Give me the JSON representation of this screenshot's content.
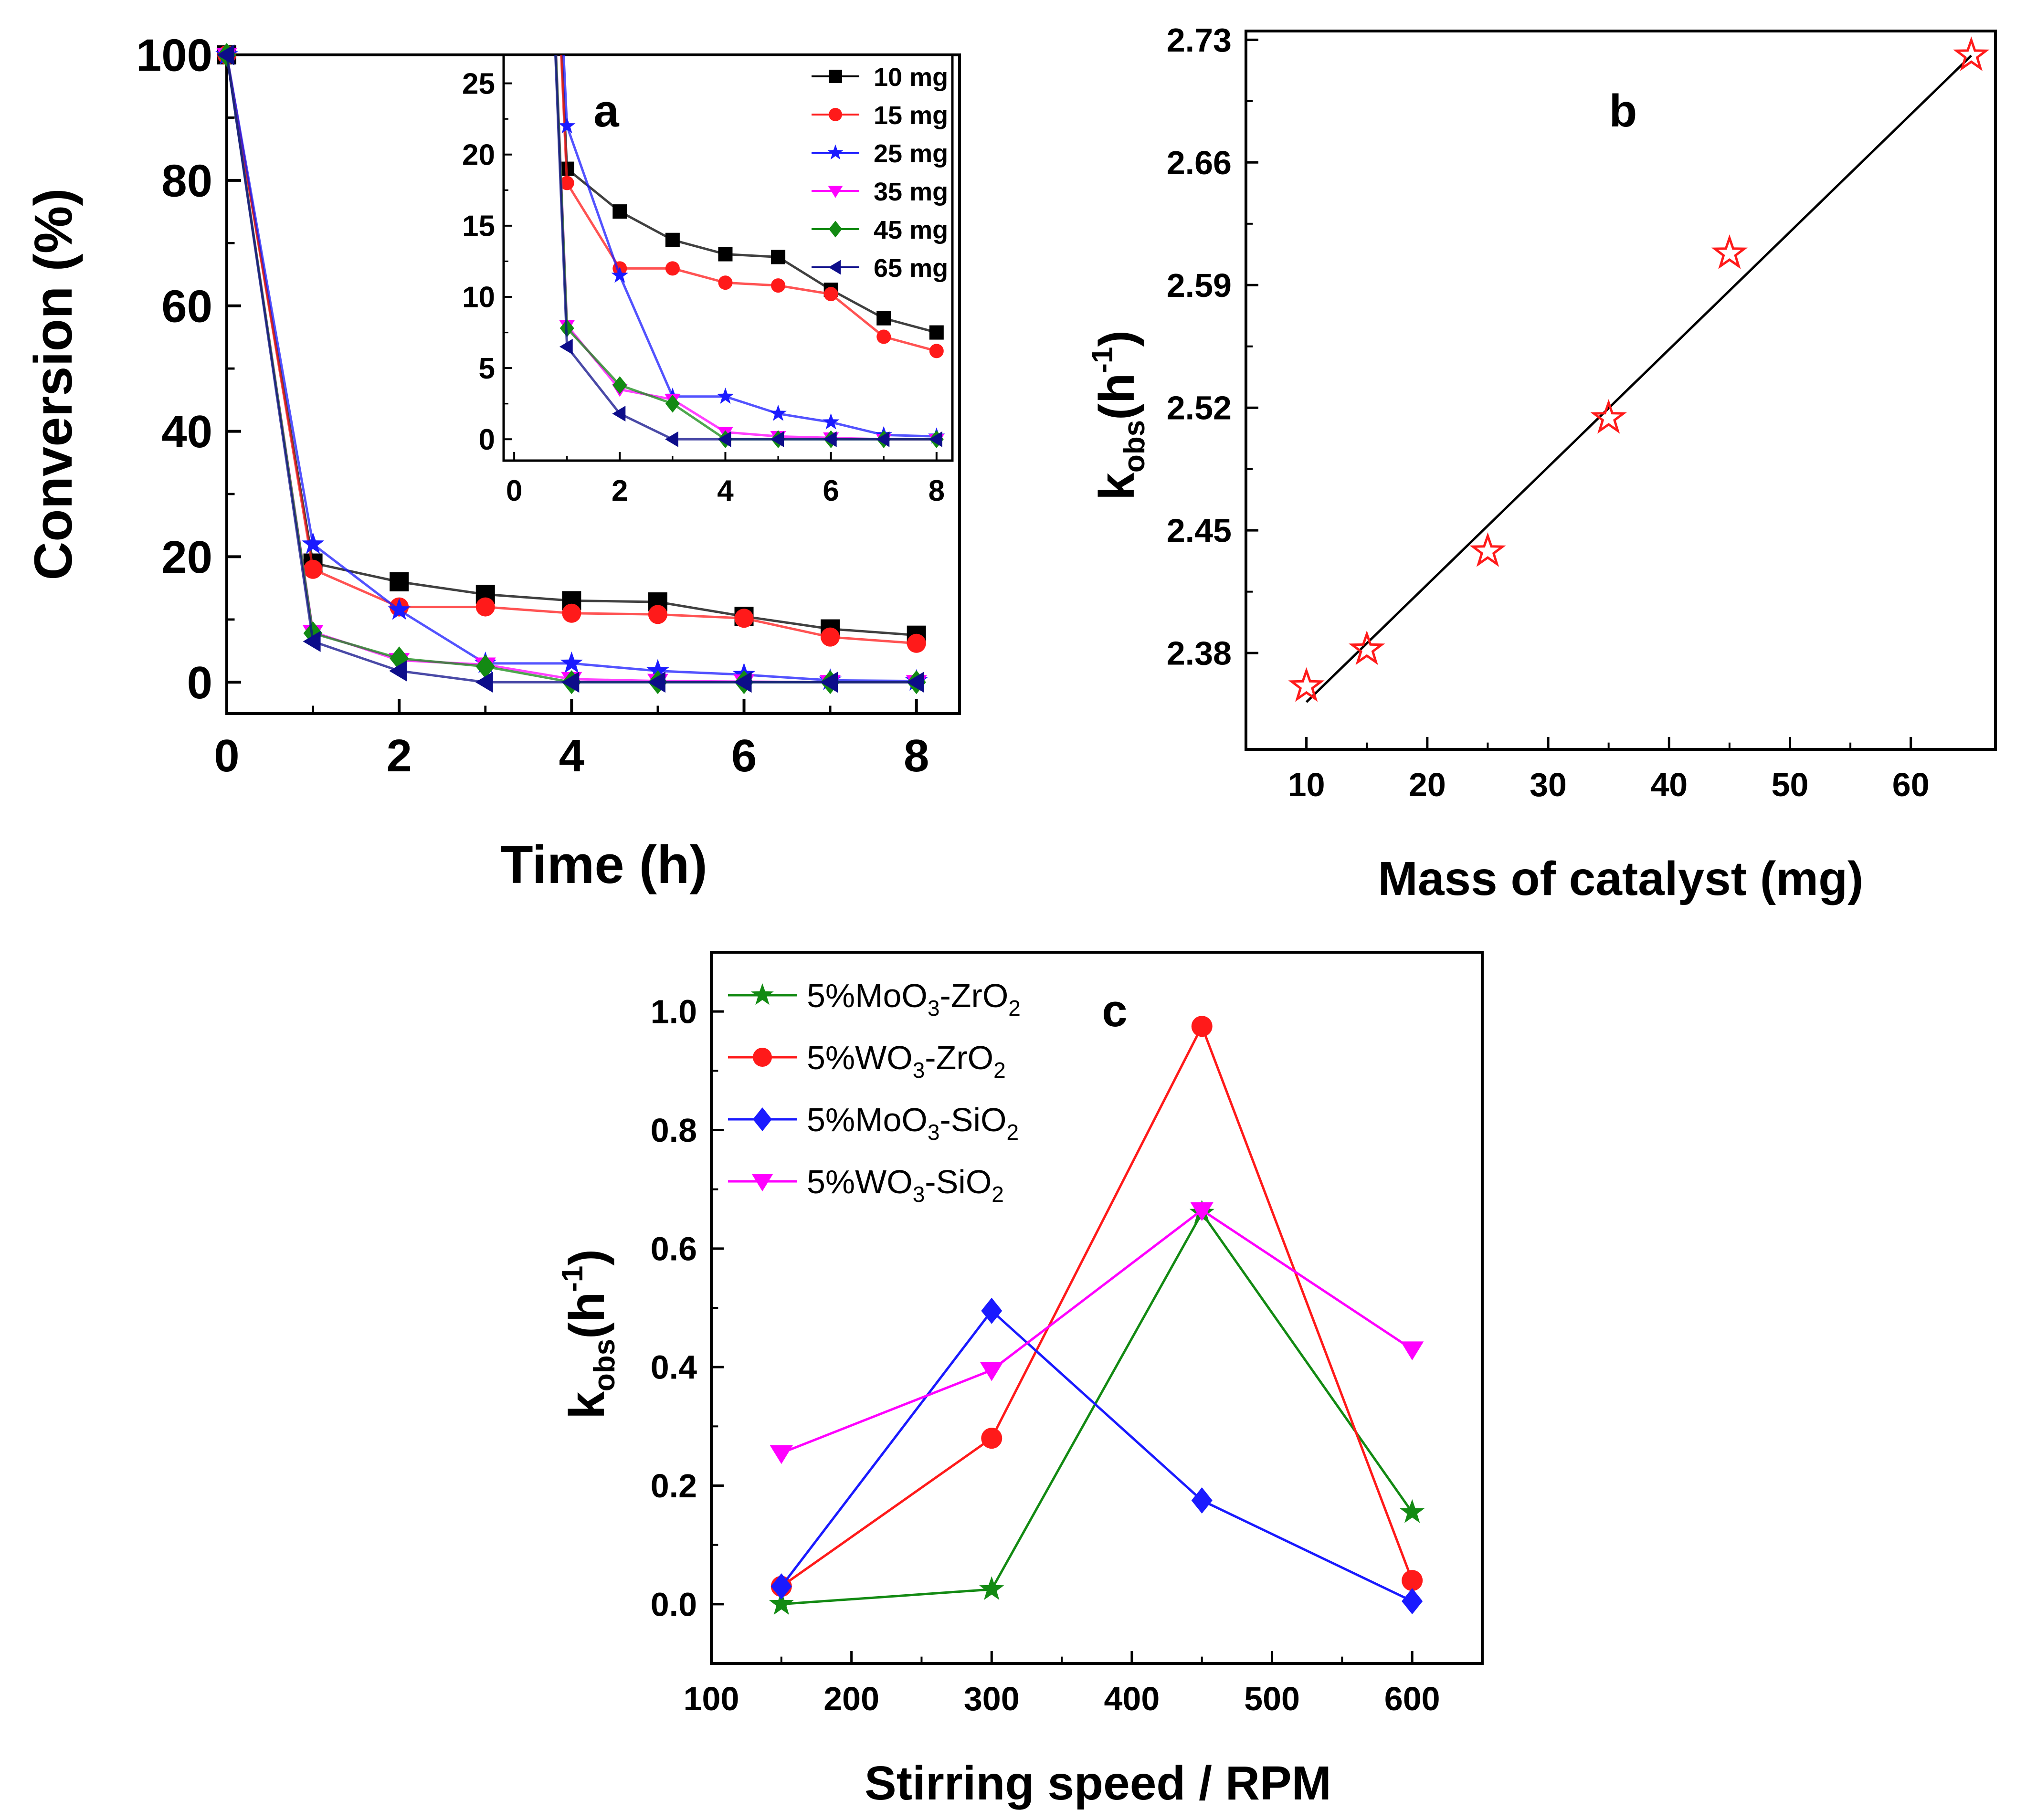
{
  "colors": {
    "black": "#000000",
    "red": "#ff1a1a",
    "blue": "#1a1aff",
    "magenta": "#ff00ff",
    "green": "#138a13",
    "navy": "#0d0d8a",
    "axis": "#000000"
  },
  "chart_data": [
    {
      "id": "a",
      "panel_label": "a",
      "type": "line",
      "xlabel": "Time (h)",
      "ylabel": "Conversion (%)",
      "xlim": [
        0,
        8.5
      ],
      "ylim": [
        -5,
        100
      ],
      "xticks": [
        0,
        2,
        4,
        6,
        8
      ],
      "yticks": [
        0,
        20,
        40,
        60,
        80,
        100
      ],
      "x": [
        0,
        1,
        2,
        3,
        4,
        5,
        6,
        7,
        8
      ],
      "series": [
        {
          "name": "10 mg",
          "marker": "square",
          "color": "#000000",
          "values": [
            100,
            19,
            16,
            14,
            13,
            12.8,
            10.5,
            8.5,
            7.5
          ]
        },
        {
          "name": "15 mg",
          "marker": "circle",
          "color": "#ff1a1a",
          "values": [
            100,
            18,
            12,
            12,
            11,
            10.8,
            10.2,
            7.2,
            6.2
          ]
        },
        {
          "name": "25 mg",
          "marker": "star",
          "color": "#1a1aff",
          "values": [
            100,
            22,
            11.5,
            3,
            3,
            1.8,
            1.2,
            0.3,
            0.2
          ]
        },
        {
          "name": "35 mg",
          "marker": "triangle-down",
          "color": "#ff00ff",
          "values": [
            100,
            8,
            3.5,
            2.8,
            0.5,
            0.2,
            0.1,
            0,
            0
          ]
        },
        {
          "name": "45 mg",
          "marker": "diamond",
          "color": "#138a13",
          "values": [
            100,
            7.8,
            3.8,
            2.5,
            0,
            0,
            0,
            0,
            0
          ]
        },
        {
          "name": "65 mg",
          "marker": "triangle-left",
          "color": "#0d0d8a",
          "values": [
            100,
            6.5,
            1.8,
            0,
            0,
            0,
            0,
            0,
            0
          ]
        }
      ]
    },
    {
      "id": "a-inset",
      "type": "line",
      "xlim": [
        -0.2,
        8.3
      ],
      "ylim": [
        -1.5,
        27
      ],
      "xticks": [
        0,
        2,
        4,
        6,
        8
      ],
      "yticks": [
        0,
        5,
        10,
        15,
        20,
        25
      ],
      "x": [
        0,
        1,
        2,
        3,
        4,
        5,
        6,
        7,
        8
      ],
      "legend": [
        "10 mg",
        "15 mg",
        "25 mg",
        "35 mg",
        "45 mg",
        "65 mg"
      ]
    },
    {
      "id": "b",
      "panel_label": "b",
      "type": "scatter",
      "xlabel": "Mass of catalyst (mg)",
      "ylabel": "k",
      "ylabel_sub": "obs",
      "ylabel_unit_open": "(h",
      "ylabel_sup": "-1",
      "ylabel_unit_close": ")",
      "xlim": [
        5,
        67
      ],
      "ylim": [
        2.325,
        2.735
      ],
      "xticks": [
        10,
        20,
        30,
        40,
        50,
        60
      ],
      "yticks": [
        "2.38",
        "2.45",
        "2.52",
        "2.59",
        "2.66",
        "2.73"
      ],
      "x": [
        10,
        15,
        25,
        35,
        45,
        65
      ],
      "values": [
        2.361,
        2.382,
        2.438,
        2.514,
        2.608,
        2.721
      ],
      "fit_line": {
        "x": [
          10,
          65
        ],
        "y": [
          2.352,
          2.721
        ]
      }
    },
    {
      "id": "c",
      "panel_label": "c",
      "type": "line",
      "xlabel": "Stirring speed / RPM",
      "ylabel": "k",
      "ylabel_sub": "obs",
      "ylabel_unit_open": "(h",
      "ylabel_sup": "-1",
      "ylabel_unit_close": ")",
      "xlim": [
        100,
        650
      ],
      "ylim": [
        -0.1,
        1.1
      ],
      "xticks": [
        100,
        200,
        300,
        400,
        500,
        600
      ],
      "yticks": [
        "0.0",
        "0.2",
        "0.4",
        "0.6",
        "0.8",
        "1.0"
      ],
      "x": [
        150,
        300,
        450,
        600
      ],
      "series": [
        {
          "name": "5%MoO3-ZrO2",
          "label_parts": [
            "5%MoO",
            "3",
            "-ZrO",
            "2"
          ],
          "marker": "star",
          "color": "#138a13",
          "values": [
            0.0,
            0.025,
            0.66,
            0.155
          ]
        },
        {
          "name": "5%WO3-ZrO2",
          "label_parts": [
            "5%WO",
            "3",
            "-ZrO",
            "2"
          ],
          "marker": "circle",
          "color": "#ff1a1a",
          "values": [
            0.03,
            0.28,
            0.975,
            0.04
          ]
        },
        {
          "name": "5%MoO3-SiO2",
          "label_parts": [
            "5%MoO",
            "3",
            "-SiO",
            "2"
          ],
          "marker": "diamond",
          "color": "#1a1aff",
          "values": [
            0.03,
            0.495,
            0.175,
            0.005
          ]
        },
        {
          "name": "5%WO3-SiO2",
          "label_parts": [
            "5%WO",
            "3",
            "-SiO",
            "2"
          ],
          "marker": "triangle-down",
          "color": "#ff00ff",
          "values": [
            0.255,
            0.395,
            0.665,
            0.43
          ]
        }
      ]
    }
  ]
}
